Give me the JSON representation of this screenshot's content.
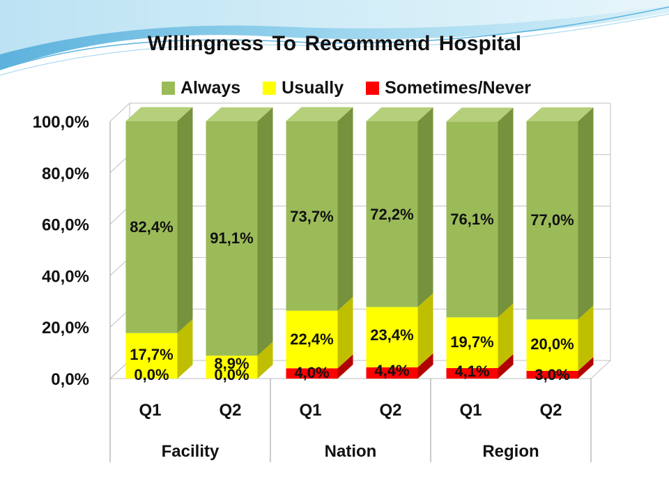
{
  "chart_data": {
    "type": "bar",
    "stacked": true,
    "three_d": true,
    "title": "Willingness To Recommend Hospital",
    "categories": [
      "Q1",
      "Q2",
      "Q1",
      "Q2",
      "Q1",
      "Q2"
    ],
    "groups": [
      {
        "name": "Facility",
        "categories": [
          "Q1",
          "Q2"
        ]
      },
      {
        "name": "Nation",
        "categories": [
          "Q1",
          "Q2"
        ]
      },
      {
        "name": "Region",
        "categories": [
          "Q1",
          "Q2"
        ]
      }
    ],
    "series": [
      {
        "name": "Sometimes/Never",
        "color": "#ff0000",
        "values": [
          0.0,
          0.0,
          4.0,
          4.4,
          4.1,
          3.0
        ],
        "labels": [
          "0,0%",
          "0,0%",
          "4,0%",
          "4,4%",
          "4,1%",
          "3,0%"
        ]
      },
      {
        "name": "Usually",
        "color": "#ffff00",
        "values": [
          17.7,
          8.9,
          22.4,
          23.4,
          19.7,
          20.0
        ],
        "labels": [
          "17,7%",
          "8,9%",
          "22,4%",
          "23,4%",
          "19,7%",
          "20,0%"
        ]
      },
      {
        "name": "Always",
        "color": "#9bbb59",
        "values": [
          82.4,
          91.1,
          73.7,
          72.2,
          76.1,
          77.0
        ],
        "labels": [
          "82,4%",
          "91,1%",
          "73,7%",
          "72,2%",
          "76,1%",
          "77,0%"
        ]
      }
    ],
    "legend_order": [
      "Always",
      "Usually",
      "Sometimes/Never"
    ],
    "y_ticks": [
      "0,0%",
      "20,0%",
      "40,0%",
      "60,0%",
      "80,0%",
      "100,0%"
    ],
    "ylim": [
      0,
      100
    ],
    "grid": true,
    "legend_position": "top"
  }
}
